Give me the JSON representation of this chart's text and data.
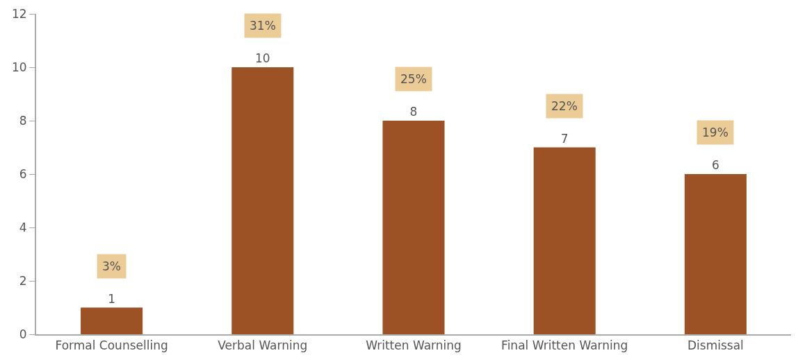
{
  "chart_data": {
    "type": "bar",
    "categories": [
      "Formal Counselling",
      "Verbal Warning",
      "Written Warning",
      "Final Written Warning",
      "Dismissal"
    ],
    "values": [
      1,
      10,
      8,
      7,
      6
    ],
    "color": "#9c5224",
    "data_labels": true,
    "ylim": [
      0,
      12
    ],
    "yticks": [
      0,
      2,
      4,
      6,
      8,
      10,
      12
    ],
    "annotations": [
      {
        "text": "3%",
        "x": "Formal Counselling",
        "y": 1
      },
      {
        "text": "31%",
        "x": "Verbal Warning",
        "y": 10
      },
      {
        "text": "25%",
        "x": "Written Warning",
        "y": 8
      },
      {
        "text": "22%",
        "x": "Final Written Warning",
        "y": 7
      },
      {
        "text": "19%",
        "x": "Dismissal",
        "y": 6
      }
    ]
  }
}
